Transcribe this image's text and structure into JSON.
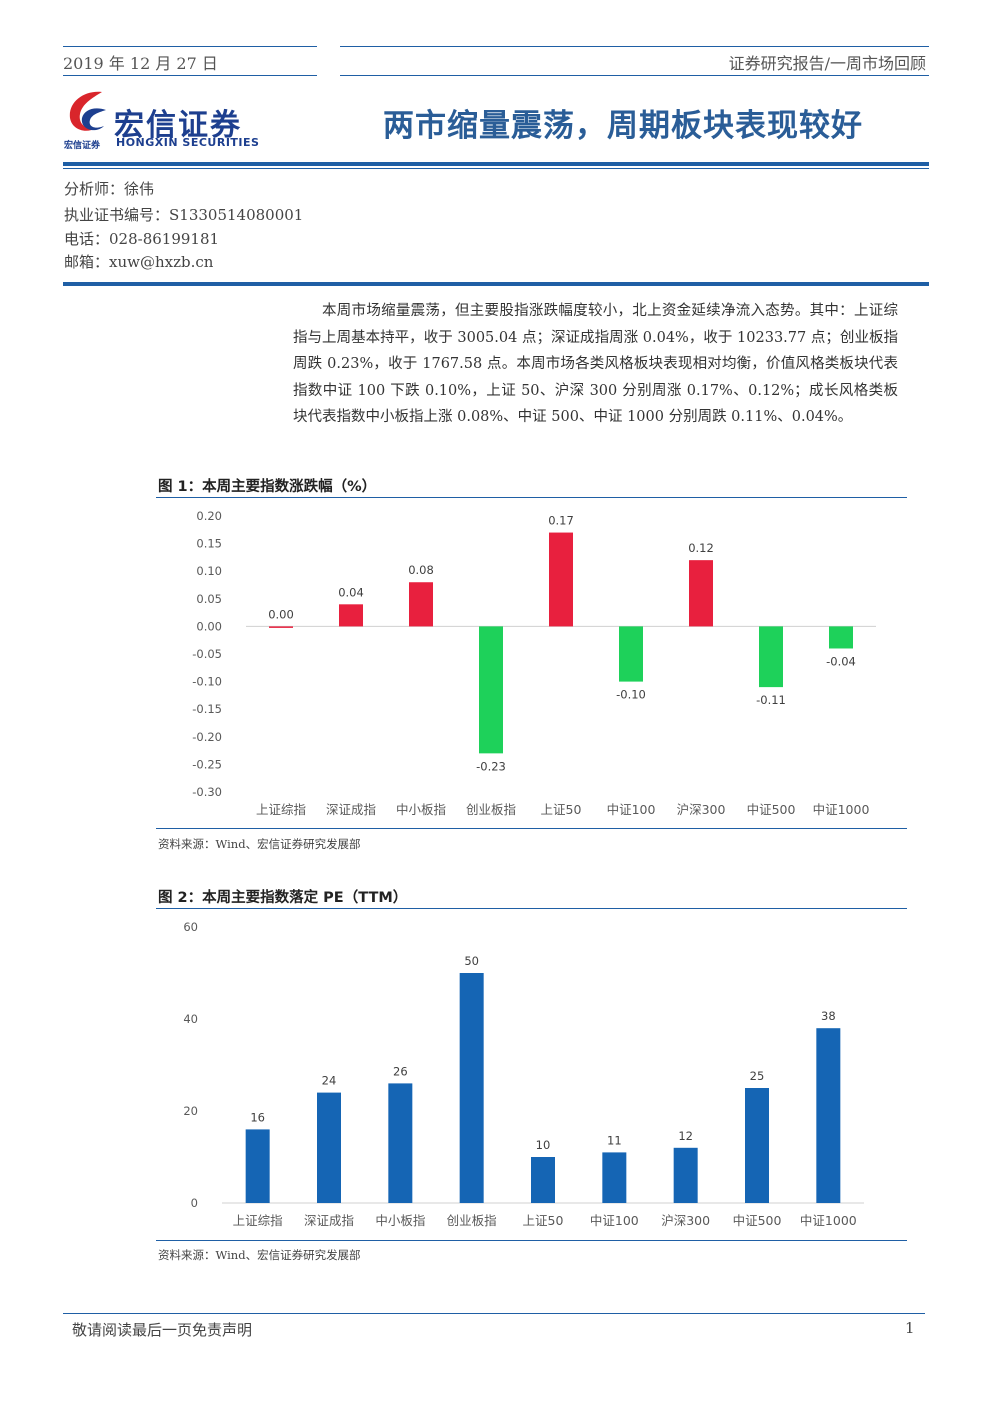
{
  "header": {
    "date": "2019 年 12 月 27 日",
    "doc_type": "证券研究报告/一周市场回顾",
    "logo_cn": "宏信证券",
    "logo_small": "宏信证券",
    "logo_en": "HONGXIN SECURITIES",
    "title": "两市缩量震荡，周期板块表现较好"
  },
  "analyst": {
    "name_line": "分析师：徐伟",
    "cert_line": "执业证书编号：S1330514080001",
    "phone_line": "电话：028-86199181",
    "email_line": "邮箱：xuw@hxzb.cn"
  },
  "summary": "本周市场缩量震荡，但主要股指涨跌幅度较小，北上资金延续净流入态势。其中：上证综指与上周基本持平，收于 3005.04 点；深证成指周涨 0.04%，收于 10233.77 点；创业板指周跌 0.23%，收于 1767.58 点。本周市场各类风格板块表现相对均衡，价值风格类板块代表指数中证 100 下跌 0.10%，上证 50、沪深 300 分别周涨 0.17%、0.12%；成长风格类板块代表指数中小板指上涨 0.08%、中证 500、中证 1000 分别周跌 0.11%、0.04%。",
  "figure1": {
    "title": "图 1：本周主要指数涨跌幅（%）",
    "source": "资料来源：Wind、宏信证券研究发展部"
  },
  "figure2": {
    "title": "图 2：本周主要指数落定 PE（TTM）",
    "source": "资料来源：Wind、宏信证券研究发展部"
  },
  "footer": {
    "disclaimer": "敬请阅读最后一页免责声明",
    "page": "1"
  },
  "colors": {
    "accent": "#1f5fa5",
    "up": "#e8203e",
    "down": "#1ed15a",
    "pe_bar": "#1565b4"
  },
  "chart_data": [
    {
      "type": "bar",
      "categories": [
        "上证综指",
        "深证成指",
        "中小板指",
        "创业板指",
        "上证50",
        "中证100",
        "沪深300",
        "中证500",
        "中证1000"
      ],
      "values": [
        0.0,
        0.04,
        0.08,
        -0.23,
        0.17,
        -0.1,
        0.12,
        -0.11,
        -0.04
      ],
      "value_labels": [
        "0.00",
        "0.04",
        "0.08",
        "-0.23",
        "0.17",
        "-0.10",
        "0.12",
        "-0.11",
        "-0.04"
      ],
      "ylim": [
        -0.3,
        0.2
      ],
      "yticks": [
        "0.20",
        "0.15",
        "0.10",
        "0.05",
        "0.00",
        "-0.05",
        "-0.10",
        "-0.15",
        "-0.20",
        "-0.25",
        "-0.30"
      ],
      "ytick_values": [
        0.2,
        0.15,
        0.1,
        0.05,
        0.0,
        -0.05,
        -0.1,
        -0.15,
        -0.2,
        -0.25,
        -0.3
      ],
      "grid": false,
      "colors": {
        "positive": "#e8203e",
        "negative": "#1ed15a"
      }
    },
    {
      "type": "bar",
      "categories": [
        "上证综指",
        "深证成指",
        "中小板指",
        "创业板指",
        "上证50",
        "中证100",
        "沪深300",
        "中证500",
        "中证1000"
      ],
      "values": [
        16,
        24,
        26,
        50,
        10,
        11,
        12,
        25,
        38
      ],
      "value_labels": [
        "16",
        "24",
        "26",
        "50",
        "10",
        "11",
        "12",
        "25",
        "38"
      ],
      "ylim": [
        0,
        60
      ],
      "yticks": [
        "60",
        "40",
        "20",
        "0"
      ],
      "ytick_values": [
        60,
        40,
        20,
        0
      ],
      "grid": false,
      "colors": {
        "bar": "#1565b4"
      }
    }
  ]
}
